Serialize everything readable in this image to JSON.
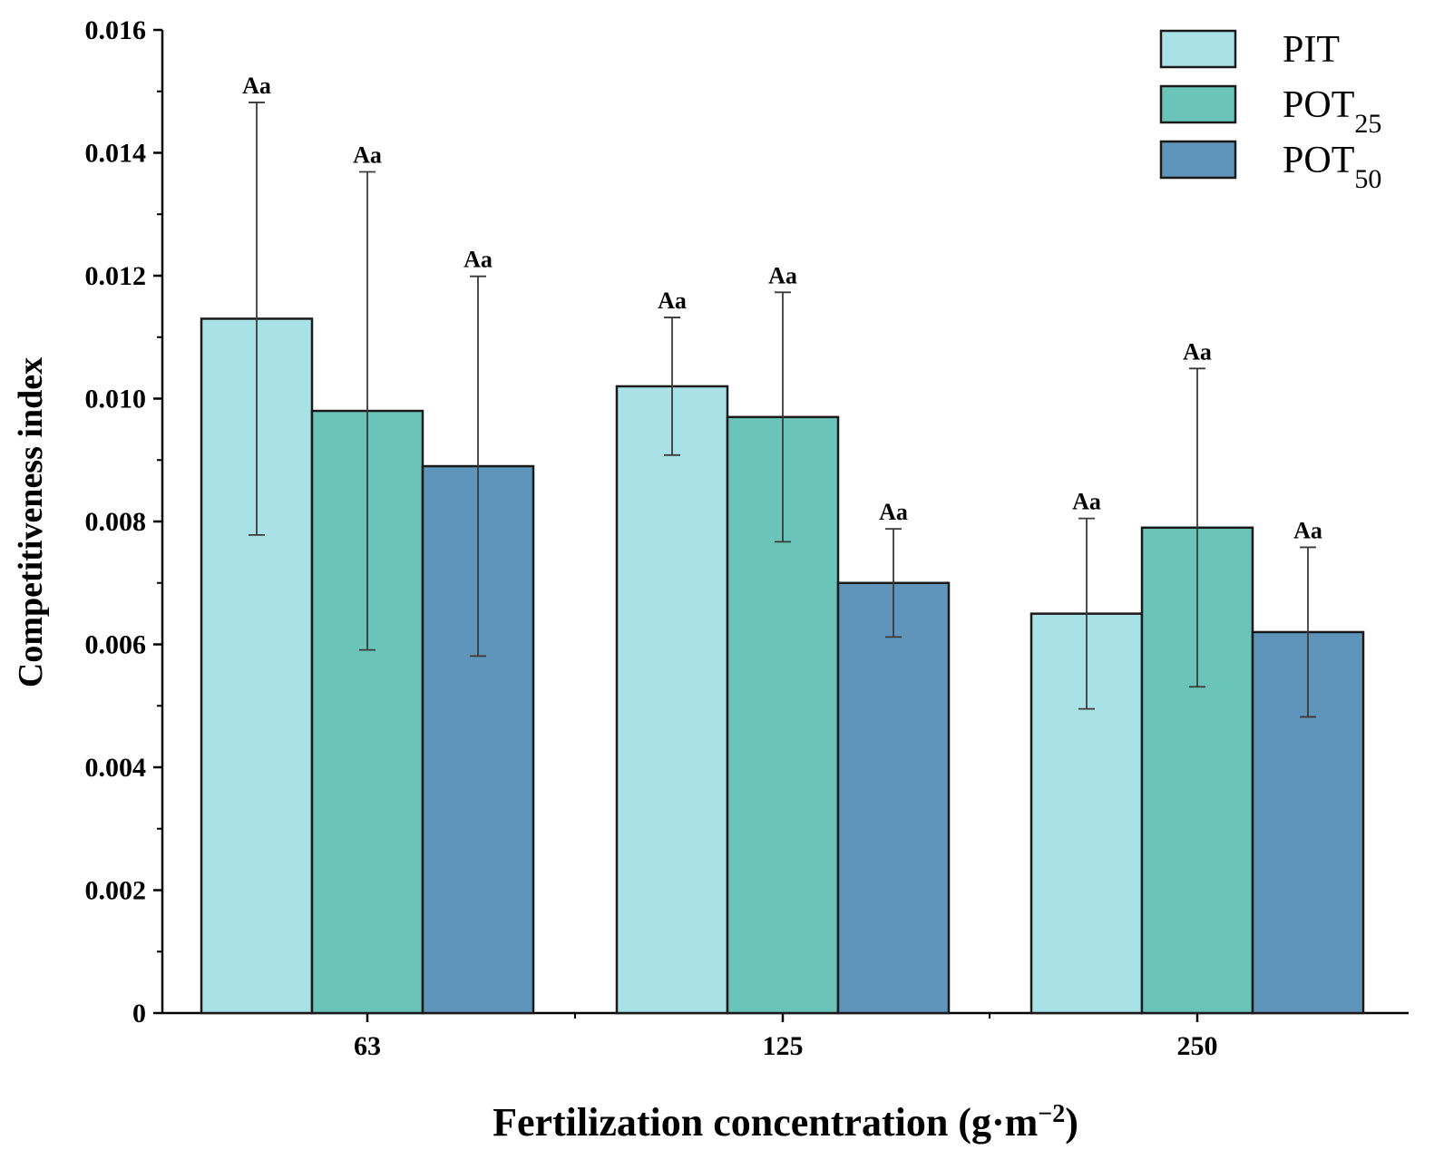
{
  "chart_data": {
    "type": "bar",
    "categories": [
      "63",
      "125",
      "250"
    ],
    "series": [
      {
        "name": "PIT",
        "name_base": "PIT",
        "name_sub": "",
        "color": "#a8e2e6",
        "values": [
          0.0113,
          0.0102,
          0.0065
        ],
        "errors": [
          0.00352,
          0.00112,
          0.00155
        ],
        "labels": [
          "Aa",
          "Aa",
          "Aa"
        ]
      },
      {
        "name": "POT25",
        "name_base": "POT",
        "name_sub": "25",
        "color": "#6ac4b9",
        "values": [
          0.0098,
          0.0097,
          0.0079
        ],
        "errors": [
          0.00389,
          0.00203,
          0.00259
        ],
        "labels": [
          "Aa",
          "Aa",
          "Aa"
        ]
      },
      {
        "name": "POT50",
        "name_base": "POT",
        "name_sub": "50",
        "color": "#5f95bb",
        "values": [
          0.0089,
          0.007,
          0.0062
        ],
        "errors": [
          0.00309,
          0.00088,
          0.00138
        ],
        "labels": [
          "Aa",
          "Aa",
          "Aa"
        ]
      }
    ],
    "xlabel": "Fertilization concentration (g·m",
    "xlabel_sup": "−2",
    "xlabel_end": ")",
    "ylabel": "Competitiveness index",
    "ylim": [
      0,
      0.016
    ],
    "yticks": [
      "0",
      "0.002",
      "0.004",
      "0.006",
      "0.008",
      "0.010",
      "0.012",
      "0.014",
      "0.016"
    ],
    "ytick_values": [
      0,
      0.002,
      0.004,
      0.006,
      0.008,
      0.01,
      0.012,
      0.014,
      0.016
    ],
    "legend_position": "top-right",
    "grid": false
  }
}
